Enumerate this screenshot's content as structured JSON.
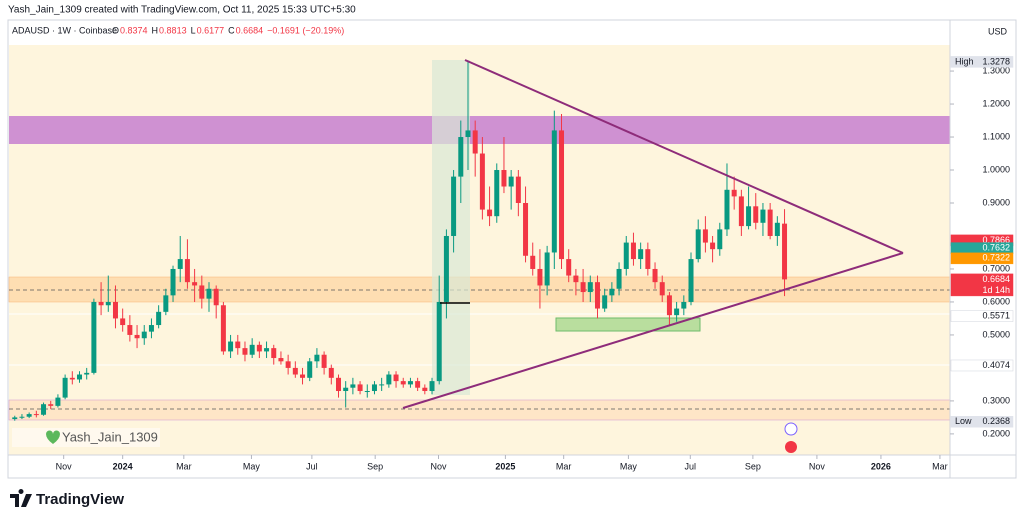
{
  "header": "Yash_Jain_1309 created with TradingView.com, Oct 11, 2025 15:33 UTC+5:30",
  "footer": "TradingView",
  "chart_data": {
    "type": "candlestick",
    "symbol": "ADAUSD · 1W · Coinbase",
    "ohlc_letters": [
      "O",
      "H",
      "L",
      "C"
    ],
    "change": "−0.1691 (−20.19%)",
    "currency": "USD",
    "watermark": "Yash_Jain_1309",
    "colors": {
      "up": "#089981",
      "down": "#f23645"
    },
    "ylim": [
      0.136,
      1.379
    ],
    "yticks": [
      {
        "value": 1.3,
        "label": "1.3000"
      },
      {
        "value": 1.2,
        "label": "1.2000"
      },
      {
        "value": 1.1,
        "label": "1.1000"
      },
      {
        "value": 1.0,
        "label": "1.0000"
      },
      {
        "value": 0.9,
        "label": "0.9000"
      },
      {
        "value": 0.7,
        "label": "0.7000"
      },
      {
        "value": 0.6,
        "label": "0.6000"
      },
      {
        "value": 0.5,
        "label": "0.5000"
      },
      {
        "value": 0.3,
        "label": "0.3000"
      },
      {
        "value": 0.2,
        "label": "0.2000"
      }
    ],
    "xlim": [
      -0.8,
      130
    ],
    "xticks": [
      {
        "value": 6.8,
        "label": "Nov"
      },
      {
        "value": 15,
        "label": "2024"
      },
      {
        "value": 23.5,
        "label": "Mar"
      },
      {
        "value": 32.9,
        "label": "May"
      },
      {
        "value": 41.3,
        "label": "Jul"
      },
      {
        "value": 50.1,
        "label": "Sep"
      },
      {
        "value": 58.9,
        "label": "Nov"
      },
      {
        "value": 68.2,
        "label": "2025"
      },
      {
        "value": 76.3,
        "label": "Mar"
      },
      {
        "value": 85.3,
        "label": "May"
      },
      {
        "value": 93.9,
        "label": "Jul"
      },
      {
        "value": 102.6,
        "label": "Sep"
      },
      {
        "value": 111.5,
        "label": "Nov"
      },
      {
        "value": 120.4,
        "label": "2026"
      },
      {
        "value": 128.6,
        "label": "Mar"
      }
    ],
    "price_tags": [
      {
        "label": "High",
        "value": 1.3278,
        "color": "#e0e3eb",
        "text_color": "#131722"
      },
      {
        "value": 0.7866,
        "color": "#f23645",
        "text_color": "#ffffff"
      },
      {
        "value": 0.7632,
        "color": "#26a69a",
        "text_color": "#ffffff"
      },
      {
        "value": 0.7322,
        "color": "#ff9800",
        "text_color": "#ffffff"
      },
      {
        "value": 0.6684,
        "extra": "1d 14h",
        "color": "#f23645",
        "text_color": "#ffffff"
      },
      {
        "value": 0.5571,
        "color": "#ffffff",
        "text_color": "#131722"
      },
      {
        "value": 0.4074,
        "color": "#ffffff",
        "text_color": "#131722"
      },
      {
        "label": "Low",
        "value": 0.2368,
        "color": "#e0e3eb",
        "text_color": "#131722"
      }
    ],
    "candles": [
      [
        0.245,
        0.255,
        0.24,
        0.25
      ],
      [
        0.25,
        0.26,
        0.245,
        0.252
      ],
      [
        0.252,
        0.265,
        0.248,
        0.26
      ],
      [
        0.26,
        0.27,
        0.25,
        0.258
      ],
      [
        0.258,
        0.295,
        0.255,
        0.29
      ],
      [
        0.29,
        0.3,
        0.275,
        0.285
      ],
      [
        0.285,
        0.32,
        0.28,
        0.31
      ],
      [
        0.31,
        0.38,
        0.305,
        0.37
      ],
      [
        0.37,
        0.39,
        0.35,
        0.365
      ],
      [
        0.365,
        0.39,
        0.355,
        0.38
      ],
      [
        0.38,
        0.4,
        0.365,
        0.385
      ],
      [
        0.385,
        0.61,
        0.38,
        0.6
      ],
      [
        0.6,
        0.66,
        0.56,
        0.59
      ],
      [
        0.59,
        0.68,
        0.57,
        0.6
      ],
      [
        0.6,
        0.65,
        0.52,
        0.55
      ],
      [
        0.55,
        0.58,
        0.51,
        0.53
      ],
      [
        0.53,
        0.56,
        0.48,
        0.5
      ],
      [
        0.5,
        0.53,
        0.46,
        0.49
      ],
      [
        0.49,
        0.53,
        0.47,
        0.51
      ],
      [
        0.51,
        0.55,
        0.49,
        0.53
      ],
      [
        0.53,
        0.59,
        0.52,
        0.57
      ],
      [
        0.57,
        0.64,
        0.56,
        0.62
      ],
      [
        0.62,
        0.71,
        0.6,
        0.7
      ],
      [
        0.7,
        0.8,
        0.66,
        0.73
      ],
      [
        0.73,
        0.79,
        0.64,
        0.66
      ],
      [
        0.66,
        0.7,
        0.6,
        0.65
      ],
      [
        0.65,
        0.68,
        0.58,
        0.61
      ],
      [
        0.61,
        0.66,
        0.57,
        0.64
      ],
      [
        0.64,
        0.65,
        0.55,
        0.59
      ],
      [
        0.59,
        0.6,
        0.44,
        0.45
      ],
      [
        0.45,
        0.5,
        0.43,
        0.48
      ],
      [
        0.48,
        0.5,
        0.44,
        0.46
      ],
      [
        0.46,
        0.48,
        0.42,
        0.44
      ],
      [
        0.44,
        0.49,
        0.43,
        0.47
      ],
      [
        0.47,
        0.48,
        0.43,
        0.45
      ],
      [
        0.45,
        0.48,
        0.43,
        0.46
      ],
      [
        0.46,
        0.47,
        0.41,
        0.43
      ],
      [
        0.43,
        0.45,
        0.41,
        0.42
      ],
      [
        0.42,
        0.44,
        0.38,
        0.4
      ],
      [
        0.4,
        0.42,
        0.37,
        0.38
      ],
      [
        0.38,
        0.4,
        0.35,
        0.37
      ],
      [
        0.37,
        0.43,
        0.36,
        0.42
      ],
      [
        0.42,
        0.46,
        0.4,
        0.44
      ],
      [
        0.44,
        0.45,
        0.38,
        0.4
      ],
      [
        0.4,
        0.41,
        0.35,
        0.37
      ],
      [
        0.37,
        0.38,
        0.31,
        0.33
      ],
      [
        0.33,
        0.36,
        0.28,
        0.34
      ],
      [
        0.34,
        0.37,
        0.32,
        0.35
      ],
      [
        0.35,
        0.36,
        0.32,
        0.33
      ],
      [
        0.33,
        0.35,
        0.31,
        0.33
      ],
      [
        0.33,
        0.36,
        0.32,
        0.35
      ],
      [
        0.35,
        0.37,
        0.33,
        0.35
      ],
      [
        0.35,
        0.39,
        0.34,
        0.38
      ],
      [
        0.38,
        0.39,
        0.34,
        0.36
      ],
      [
        0.36,
        0.37,
        0.34,
        0.35
      ],
      [
        0.35,
        0.37,
        0.34,
        0.36
      ],
      [
        0.36,
        0.37,
        0.33,
        0.34
      ],
      [
        0.34,
        0.35,
        0.32,
        0.33
      ],
      [
        0.33,
        0.37,
        0.32,
        0.36
      ],
      [
        0.36,
        0.68,
        0.35,
        0.6
      ],
      [
        0.6,
        0.82,
        0.55,
        0.8
      ],
      [
        0.8,
        1.0,
        0.75,
        0.98
      ],
      [
        0.98,
        1.15,
        0.9,
        1.1
      ],
      [
        1.1,
        1.3278,
        1.0,
        1.12
      ],
      [
        1.12,
        1.15,
        0.98,
        1.05
      ],
      [
        1.05,
        1.1,
        0.85,
        0.88
      ],
      [
        0.88,
        0.95,
        0.83,
        0.86
      ],
      [
        0.86,
        1.02,
        0.84,
        1.0
      ],
      [
        1.0,
        1.1,
        0.93,
        0.95
      ],
      [
        0.95,
        1.0,
        0.88,
        0.98
      ],
      [
        0.98,
        1.0,
        0.86,
        0.9
      ],
      [
        0.9,
        0.95,
        0.72,
        0.74
      ],
      [
        0.74,
        0.78,
        0.68,
        0.7
      ],
      [
        0.7,
        0.76,
        0.58,
        0.65
      ],
      [
        0.65,
        0.77,
        0.62,
        0.75
      ],
      [
        0.75,
        1.18,
        0.7,
        1.12
      ],
      [
        1.12,
        1.17,
        0.7,
        0.73
      ],
      [
        0.73,
        0.76,
        0.66,
        0.68
      ],
      [
        0.68,
        0.7,
        0.62,
        0.66
      ],
      [
        0.66,
        0.7,
        0.6,
        0.63
      ],
      [
        0.63,
        0.68,
        0.6,
        0.66
      ],
      [
        0.66,
        0.68,
        0.55,
        0.58
      ],
      [
        0.58,
        0.64,
        0.57,
        0.62
      ],
      [
        0.62,
        0.66,
        0.6,
        0.64
      ],
      [
        0.64,
        0.72,
        0.62,
        0.7
      ],
      [
        0.7,
        0.8,
        0.68,
        0.78
      ],
      [
        0.78,
        0.81,
        0.71,
        0.73
      ],
      [
        0.73,
        0.78,
        0.7,
        0.76
      ],
      [
        0.76,
        0.78,
        0.68,
        0.7
      ],
      [
        0.7,
        0.72,
        0.64,
        0.66
      ],
      [
        0.66,
        0.68,
        0.6,
        0.62
      ],
      [
        0.62,
        0.63,
        0.53,
        0.56
      ],
      [
        0.56,
        0.6,
        0.54,
        0.58
      ],
      [
        0.58,
        0.62,
        0.56,
        0.6
      ],
      [
        0.6,
        0.75,
        0.59,
        0.73
      ],
      [
        0.73,
        0.85,
        0.72,
        0.82
      ],
      [
        0.82,
        0.86,
        0.75,
        0.78
      ],
      [
        0.78,
        0.8,
        0.72,
        0.76
      ],
      [
        0.76,
        0.84,
        0.74,
        0.82
      ],
      [
        0.82,
        1.02,
        0.8,
        0.94
      ],
      [
        0.94,
        0.98,
        0.88,
        0.92
      ],
      [
        0.92,
        0.94,
        0.8,
        0.83
      ],
      [
        0.83,
        0.95,
        0.82,
        0.89
      ],
      [
        0.89,
        0.93,
        0.82,
        0.84
      ],
      [
        0.84,
        0.9,
        0.8,
        0.88
      ],
      [
        0.88,
        0.9,
        0.79,
        0.8
      ],
      [
        0.8,
        0.86,
        0.77,
        0.84
      ],
      [
        0.8374,
        0.8813,
        0.6177,
        0.6684
      ]
    ]
  }
}
